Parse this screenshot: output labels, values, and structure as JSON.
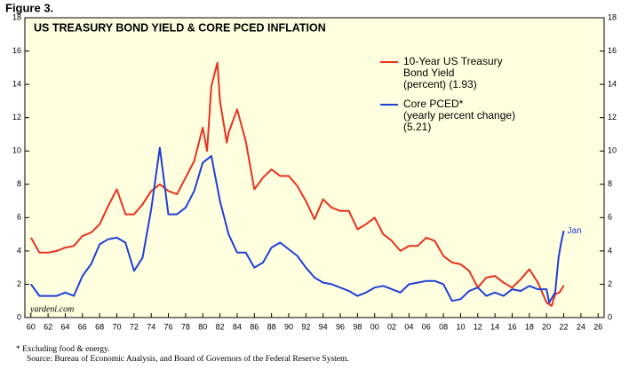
{
  "figure_label": "Figure 3.",
  "chart_data": {
    "type": "line",
    "title": "US TREASURY BOND YIELD & CORE PCED INFLATION",
    "background": "#ffffe0",
    "xlim": [
      1959.3,
      2026.7
    ],
    "xticks": [
      {
        "value": 1960,
        "label": "60"
      },
      {
        "value": 1962,
        "label": "62"
      },
      {
        "value": 1964,
        "label": "64"
      },
      {
        "value": 1966,
        "label": "66"
      },
      {
        "value": 1968,
        "label": "68"
      },
      {
        "value": 1970,
        "label": "70"
      },
      {
        "value": 1972,
        "label": "72"
      },
      {
        "value": 1974,
        "label": "74"
      },
      {
        "value": 1976,
        "label": "76"
      },
      {
        "value": 1978,
        "label": "78"
      },
      {
        "value": 1980,
        "label": "80"
      },
      {
        "value": 1982,
        "label": "82"
      },
      {
        "value": 1984,
        "label": "84"
      },
      {
        "value": 1986,
        "label": "86"
      },
      {
        "value": 1988,
        "label": "88"
      },
      {
        "value": 1990,
        "label": "90"
      },
      {
        "value": 1992,
        "label": "92"
      },
      {
        "value": 1994,
        "label": "94"
      },
      {
        "value": 1996,
        "label": "96"
      },
      {
        "value": 1998,
        "label": "98"
      },
      {
        "value": 2000,
        "label": "00"
      },
      {
        "value": 2002,
        "label": "02"
      },
      {
        "value": 2004,
        "label": "04"
      },
      {
        "value": 2006,
        "label": "06"
      },
      {
        "value": 2008,
        "label": "08"
      },
      {
        "value": 2010,
        "label": "10"
      },
      {
        "value": 2012,
        "label": "12"
      },
      {
        "value": 2014,
        "label": "14"
      },
      {
        "value": 2016,
        "label": "16"
      },
      {
        "value": 2018,
        "label": "18"
      },
      {
        "value": 2020,
        "label": "20"
      },
      {
        "value": 2022,
        "label": "22"
      },
      {
        "value": 2024,
        "label": "24"
      },
      {
        "value": 2026,
        "label": "26"
      }
    ],
    "ylim": [
      0,
      18
    ],
    "yticks": [
      0,
      2,
      4,
      6,
      8,
      10,
      12,
      14,
      16,
      18
    ],
    "y2lim": [
      0,
      18
    ],
    "y2ticks": [
      0,
      2,
      4,
      6,
      8,
      10,
      12,
      14,
      16,
      18
    ],
    "series": [
      {
        "name": "10-Year US Treasury Bond Yield",
        "legend_note": "(percent) (1.93)",
        "color": "#e8311f",
        "x": [
          1960,
          1961,
          1962,
          1963,
          1964,
          1965,
          1966,
          1967,
          1968,
          1969,
          1970,
          1971,
          1972,
          1973,
          1974,
          1975,
          1976,
          1977,
          1978,
          1979,
          1980,
          1980.5,
          1981,
          1981.7,
          1982,
          1982.8,
          1983,
          1984,
          1985,
          1986,
          1987,
          1988,
          1989,
          1990,
          1991,
          1992,
          1993,
          1994,
          1995,
          1996,
          1997,
          1998,
          1999,
          2000,
          2001,
          2002,
          2003,
          2004,
          2005,
          2006,
          2007,
          2008,
          2009,
          2010,
          2011,
          2012,
          2013,
          2014,
          2015,
          2016,
          2017,
          2018,
          2019,
          2020,
          2020.6,
          2021,
          2021.5,
          2022
        ],
        "values": [
          4.8,
          3.9,
          3.9,
          4.0,
          4.2,
          4.3,
          4.9,
          5.1,
          5.6,
          6.7,
          7.7,
          6.2,
          6.2,
          6.8,
          7.6,
          8.0,
          7.6,
          7.4,
          8.4,
          9.4,
          11.4,
          10.0,
          13.9,
          15.3,
          13.0,
          10.5,
          11.1,
          12.5,
          10.6,
          7.7,
          8.4,
          8.9,
          8.5,
          8.5,
          7.9,
          7.0,
          5.9,
          7.1,
          6.6,
          6.4,
          6.4,
          5.3,
          5.6,
          6.0,
          5.0,
          4.6,
          4.0,
          4.3,
          4.3,
          4.8,
          4.6,
          3.7,
          3.3,
          3.2,
          2.8,
          1.8,
          2.4,
          2.5,
          2.1,
          1.8,
          2.3,
          2.9,
          2.1,
          0.9,
          0.7,
          1.4,
          1.5,
          1.93
        ]
      },
      {
        "name": "Core PCED*",
        "legend_note": "(yearly percent change) (5.21)",
        "color": "#1f3fd6",
        "x": [
          1960,
          1961,
          1962,
          1963,
          1964,
          1965,
          1966,
          1967,
          1968,
          1969,
          1970,
          1971,
          1972,
          1973,
          1974,
          1975,
          1976,
          1977,
          1978,
          1979,
          1980,
          1981,
          1982,
          1983,
          1984,
          1985,
          1986,
          1987,
          1988,
          1989,
          1990,
          1991,
          1992,
          1993,
          1994,
          1995,
          1996,
          1997,
          1998,
          1999,
          2000,
          2001,
          2002,
          2003,
          2004,
          2005,
          2006,
          2007,
          2008,
          2009,
          2010,
          2011,
          2012,
          2013,
          2014,
          2015,
          2016,
          2017,
          2018,
          2019,
          2020,
          2020.3,
          2021,
          2021.4,
          2021.7,
          2022
        ],
        "values": [
          2.0,
          1.3,
          1.3,
          1.3,
          1.5,
          1.3,
          2.5,
          3.2,
          4.4,
          4.7,
          4.8,
          4.5,
          2.8,
          3.6,
          6.5,
          10.2,
          6.2,
          6.2,
          6.6,
          7.6,
          9.3,
          9.7,
          7.0,
          5.0,
          3.9,
          3.9,
          3.0,
          3.3,
          4.2,
          4.5,
          4.1,
          3.7,
          3.0,
          2.4,
          2.1,
          2.0,
          1.8,
          1.6,
          1.3,
          1.5,
          1.8,
          1.9,
          1.7,
          1.5,
          2.0,
          2.1,
          2.2,
          2.2,
          2.0,
          1.0,
          1.1,
          1.6,
          1.8,
          1.3,
          1.5,
          1.3,
          1.7,
          1.6,
          1.9,
          1.7,
          1.7,
          0.9,
          1.5,
          3.6,
          4.5,
          5.21
        ]
      }
    ],
    "annotations": [
      "Jan",
      "yardeni.com"
    ],
    "footnotes": [
      "*   Excluding food & energy.",
      "Source: Bureau of Economic Analysis, and Board of Governors of the Federal Reserve System."
    ]
  }
}
